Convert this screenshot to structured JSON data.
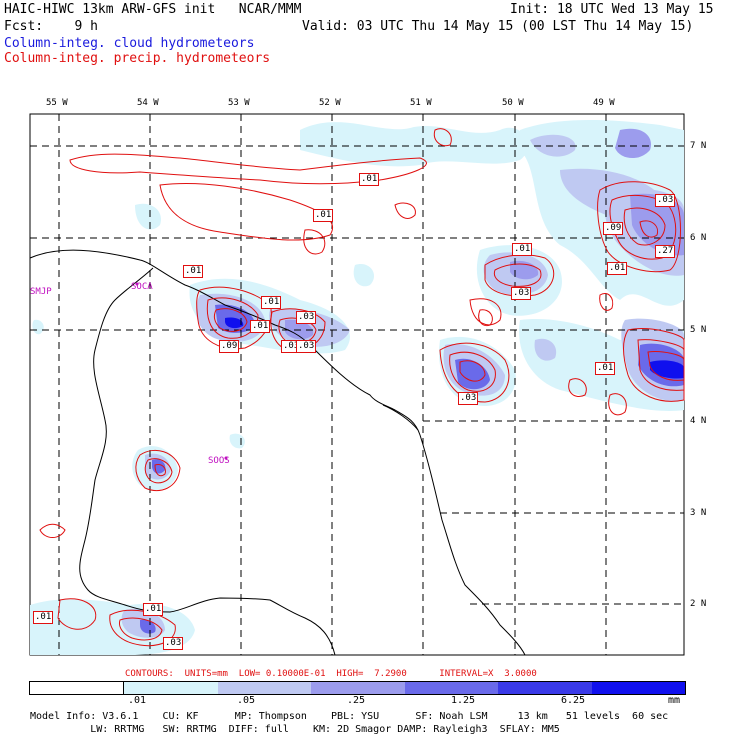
{
  "header": {
    "line1_left": "HAIC-HIWC 13km ARW-GFS init   NCAR/MMM",
    "line1_right": "Init: 18 UTC Wed 13 May 15",
    "fcst_left": "Fcst:    9 h",
    "valid": "Valid: 03 UTC Thu 14 May 15 (00 LST Thu 14 May 15)",
    "field1": "Column-integ. cloud hydrometeors",
    "field2": "Column-integ. precip. hydrometeors"
  },
  "map": {
    "lon_labels": [
      "55 W",
      "54 W",
      "53 W",
      "52 W",
      "51 W",
      "50 W",
      "49 W"
    ],
    "lat_labels": [
      "7 N",
      "6 N",
      "5 N",
      "4 N",
      "3 N",
      "2 N"
    ],
    "stations": [
      "SMJP",
      "SOCA",
      "SOOS"
    ],
    "contour_labels": [
      ".01",
      ".01",
      ".01",
      ".01",
      ".01",
      ".03",
      ".09",
      ".03",
      ".01",
      ".03",
      ".09",
      ".03",
      ".27",
      ".01",
      ".03",
      ".01",
      ".01",
      ".01",
      ".03",
      ".03"
    ]
  },
  "contour_info": {
    "text": "CONTOURS:  UNITS=mm  LOW= 0.10000E-01  HIGH=  7.2900      INTERVAL=X  3.0000"
  },
  "legend": {
    "labels": [
      ".01",
      ".05",
      ".25",
      "1.25",
      "6.25"
    ],
    "unit": "mm",
    "colors": [
      "#ffffff",
      "#d8f4fb",
      "#bfc9f2",
      "#9c9ced",
      "#6a6aea",
      "#3a3ae8",
      "#1010ee"
    ]
  },
  "footer": {
    "line1": "Model Info: V3.6.1    CU: KF      MP: Thompson    PBL: YSU      SF: Noah LSM     13 km   51 levels  60 sec",
    "line2": "          LW: RRTMG   SW: RRTMG  DIFF: full    KM: 2D Smagor DAMP: Rayleigh3  SFLAY: MM5"
  },
  "colors": {
    "cloud_light": "#d8f4fb",
    "cloud_mid": "#bfc9f2",
    "cloud_dark": "#6a6aea",
    "contour": "#e01010",
    "grid": "#000000",
    "station": "#c010c0"
  }
}
